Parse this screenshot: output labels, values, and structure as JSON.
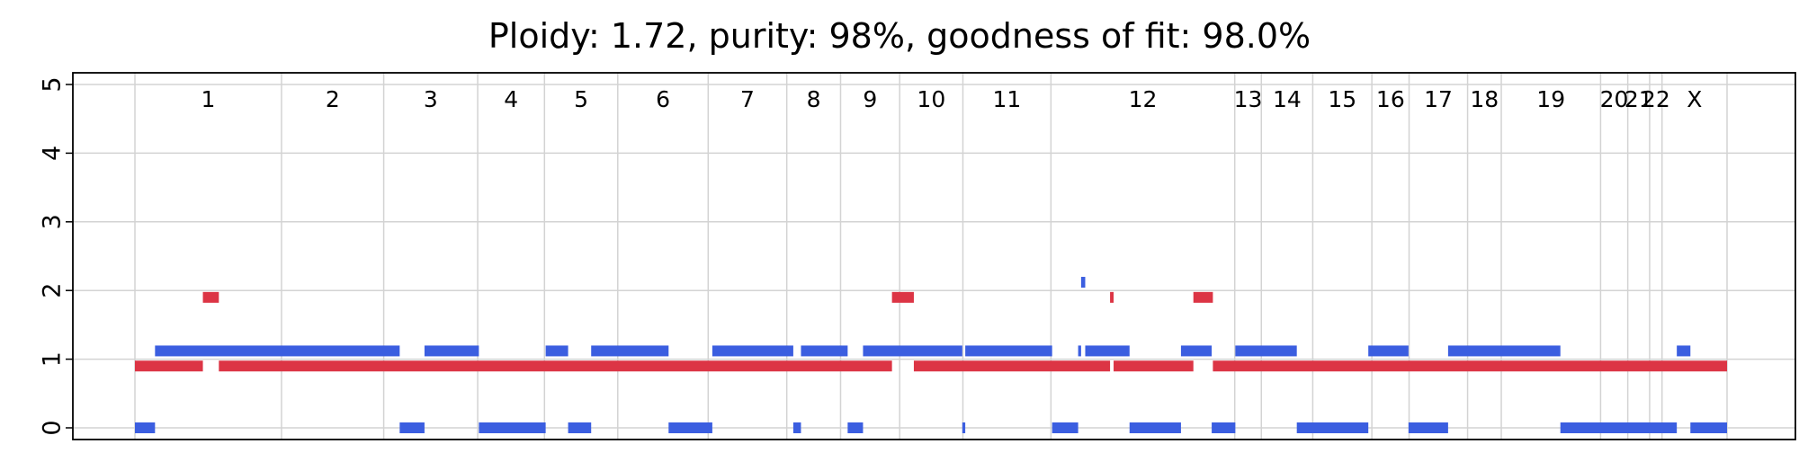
{
  "chart_data": {
    "type": "segment",
    "title": "Ploidy: 1.72, purity: 98%, goodness of fit: 98.0%",
    "xlabel": "",
    "ylabel": "",
    "ylim": [
      -0.2,
      5.1
    ],
    "yticks": [
      "0",
      "1",
      "2",
      "3",
      "4",
      "5"
    ],
    "grid": true,
    "chromosomes": [
      {
        "label": "1",
        "start": 0,
        "end": 248
      },
      {
        "label": "2",
        "start": 248,
        "end": 421
      },
      {
        "label": "3",
        "start": 421,
        "end": 580
      },
      {
        "label": "4",
        "start": 580,
        "end": 693
      },
      {
        "label": "5",
        "start": 693,
        "end": 817
      },
      {
        "label": "6",
        "start": 817,
        "end": 970
      },
      {
        "label": "7",
        "start": 970,
        "end": 1103
      },
      {
        "label": "8",
        "start": 1103,
        "end": 1194
      },
      {
        "label": "9",
        "start": 1194,
        "end": 1294
      },
      {
        "label": "10",
        "start": 1294,
        "end": 1401
      },
      {
        "label": "11",
        "start": 1401,
        "end": 1550
      },
      {
        "label": "12",
        "start": 1550,
        "end": 1861
      },
      {
        "label": "13",
        "start": 1861,
        "end": 1906
      },
      {
        "label": "14",
        "start": 1906,
        "end": 1993
      },
      {
        "label": "15",
        "start": 1993,
        "end": 2093
      },
      {
        "label": "16",
        "start": 2093,
        "end": 2156
      },
      {
        "label": "17",
        "start": 2156,
        "end": 2255
      },
      {
        "label": "18",
        "start": 2255,
        "end": 2312
      },
      {
        "label": "19",
        "start": 2312,
        "end": 2480
      },
      {
        "label": "20",
        "start": 2480,
        "end": 2526
      },
      {
        "label": "21",
        "start": 2526,
        "end": 2563
      },
      {
        "label": "22",
        "start": 2563,
        "end": 2584
      },
      {
        "label": "X",
        "start": 2584,
        "end": 2694
      }
    ],
    "series": [
      {
        "color": "#3b5ee0",
        "segments": [
          {
            "start": 0,
            "end": 34,
            "value": 0
          },
          {
            "start": 34,
            "end": 448,
            "value": 1.12
          },
          {
            "start": 448,
            "end": 490,
            "value": 0
          },
          {
            "start": 490,
            "end": 582,
            "value": 1.12
          },
          {
            "start": 582,
            "end": 695,
            "value": 0
          },
          {
            "start": 695,
            "end": 733,
            "value": 1.12
          },
          {
            "start": 733,
            "end": 772,
            "value": 0
          },
          {
            "start": 772,
            "end": 903,
            "value": 1.12
          },
          {
            "start": 903,
            "end": 977,
            "value": 0
          },
          {
            "start": 977,
            "end": 1114,
            "value": 1.12
          },
          {
            "start": 1114,
            "end": 1127,
            "value": 0
          },
          {
            "start": 1127,
            "end": 1206,
            "value": 1.12
          },
          {
            "start": 1206,
            "end": 1232,
            "value": 0
          },
          {
            "start": 1232,
            "end": 1400,
            "value": 1.12
          },
          {
            "start": 1400,
            "end": 1405,
            "value": 0
          },
          {
            "start": 1405,
            "end": 1552,
            "value": 1.12
          },
          {
            "start": 1552,
            "end": 1596,
            "value": 0
          },
          {
            "start": 1596,
            "end": 1601,
            "value": 1.12
          },
          {
            "start": 1601,
            "end": 1608,
            "value": 2.12
          },
          {
            "start": 1608,
            "end": 1683,
            "value": 1.12
          },
          {
            "start": 1683,
            "end": 1770,
            "value": 0
          },
          {
            "start": 1770,
            "end": 1822,
            "value": 1.12
          },
          {
            "start": 1822,
            "end": 1862,
            "value": 0
          },
          {
            "start": 1862,
            "end": 1966,
            "value": 1.12
          },
          {
            "start": 1966,
            "end": 2087,
            "value": 0
          },
          {
            "start": 2087,
            "end": 2155,
            "value": 1.12
          },
          {
            "start": 2155,
            "end": 2222,
            "value": 0
          },
          {
            "start": 2222,
            "end": 2412,
            "value": 1.12
          },
          {
            "start": 2412,
            "end": 2609,
            "value": 0
          },
          {
            "start": 2609,
            "end": 2632,
            "value": 1.12
          },
          {
            "start": 2632,
            "end": 2694,
            "value": 0
          }
        ]
      },
      {
        "color": "#dc3545",
        "segments": [
          {
            "start": 0,
            "end": 115,
            "value": 0.9
          },
          {
            "start": 115,
            "end": 142,
            "value": 1.9
          },
          {
            "start": 142,
            "end": 1281,
            "value": 0.9
          },
          {
            "start": 1281,
            "end": 1318,
            "value": 1.9
          },
          {
            "start": 1318,
            "end": 1650,
            "value": 0.9
          },
          {
            "start": 1650,
            "end": 1656,
            "value": 1.9
          },
          {
            "start": 1656,
            "end": 1791,
            "value": 0.9
          },
          {
            "start": 1791,
            "end": 1824,
            "value": 1.9
          },
          {
            "start": 1824,
            "end": 2694,
            "value": 0.9
          }
        ]
      }
    ]
  }
}
